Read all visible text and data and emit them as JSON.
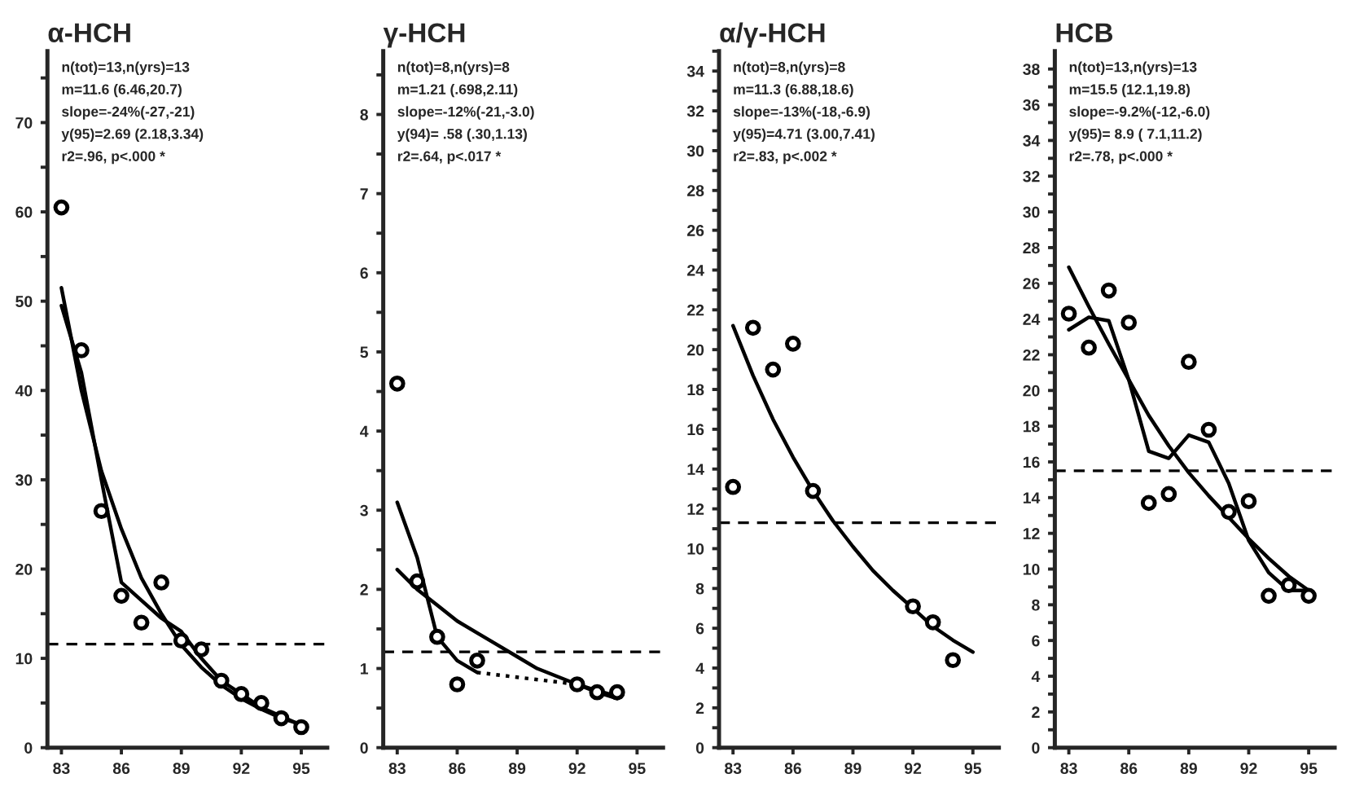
{
  "chart_data": [
    {
      "type": "scatter",
      "title": "α-HCH",
      "annotations": [
        "n(tot)=13,n(yrs)=13",
        "m=11.6 (6.46,20.7)",
        "slope=-24%(-27,-21)",
        "y(95)=2.69 (2.18,3.34)",
        "r2=.96, p<.000 *"
      ],
      "xlim": [
        82.3,
        96.3
      ],
      "xticks": [
        83,
        86,
        89,
        92,
        95
      ],
      "ylim": [
        0,
        78
      ],
      "yticks": [
        0,
        {
          "value": 5,
          "label": null
        },
        10,
        {
          "value": 15,
          "label": null
        },
        20,
        {
          "value": 25,
          "label": null
        },
        30,
        {
          "value": 35,
          "label": null
        },
        40,
        {
          "value": 45,
          "label": null
        },
        50,
        {
          "value": 55,
          "label": null
        },
        60,
        {
          "value": 65,
          "label": null
        },
        70,
        {
          "value": 75,
          "label": null
        }
      ],
      "ref_lines": [
        {
          "axis": "y",
          "value": 11.6,
          "line_style": "dashed",
          "color": "#000000"
        }
      ],
      "series": [
        {
          "marker": "circle",
          "color": "#000000",
          "x": [
            83,
            84,
            85,
            86,
            87,
            88,
            89,
            90,
            91,
            92,
            93,
            94,
            95
          ],
          "values": [
            60.5,
            44.5,
            26.5,
            17,
            14,
            18.5,
            12,
            11,
            7.5,
            6,
            5,
            3.3,
            2.3
          ]
        },
        {
          "type": "line",
          "line_style": "solid",
          "color": "#000000",
          "x": [
            83,
            84,
            85,
            86,
            87,
            88,
            89,
            90,
            91,
            92,
            93,
            94,
            95
          ],
          "values": [
            51.5,
            40,
            31,
            24.5,
            19,
            15,
            11.5,
            9,
            7,
            5.5,
            4.3,
            3.3,
            2.6
          ]
        },
        {
          "type": "line",
          "line_style": "solid",
          "color": "#000000",
          "x": [
            83,
            84,
            85,
            86,
            87,
            88,
            89,
            90,
            91,
            92,
            93,
            94,
            95
          ],
          "values": [
            49.5,
            42,
            30,
            18.5,
            16.5,
            14.5,
            13,
            10,
            7.5,
            6,
            4.5,
            3.5,
            2.5
          ]
        }
      ]
    },
    {
      "type": "scatter",
      "title": "γ-HCH",
      "annotations": [
        "n(tot)=8,n(yrs)=8",
        "m=1.21 (.698,2.11)",
        "slope=-12%(-21,-3.0)",
        "y(94)= .58 (.30,1.13)",
        "r2=.64, p<.017 *"
      ],
      "xlim": [
        82.3,
        96.3
      ],
      "xticks": [
        83,
        86,
        89,
        92,
        95
      ],
      "ylim": [
        0,
        8.8
      ],
      "yticks": [
        0,
        {
          "value": 0.5,
          "label": null
        },
        1,
        {
          "value": 1.5,
          "label": null
        },
        2,
        {
          "value": 2.5,
          "label": null
        },
        3,
        {
          "value": 3.5,
          "label": null
        },
        4,
        {
          "value": 4.5,
          "label": null
        },
        5,
        {
          "value": 5.5,
          "label": null
        },
        6,
        {
          "value": 6.5,
          "label": null
        },
        7,
        {
          "value": 7.5,
          "label": null
        },
        8,
        {
          "value": 8.5,
          "label": null
        }
      ],
      "ref_lines": [
        {
          "axis": "y",
          "value": 1.21,
          "line_style": "dashed",
          "color": "#000000"
        }
      ],
      "series": [
        {
          "marker": "circle",
          "color": "#000000",
          "x": [
            83,
            84,
            85,
            86,
            87,
            92,
            93,
            94
          ],
          "values": [
            4.6,
            2.1,
            1.4,
            0.8,
            1.1,
            0.8,
            0.7,
            0.7
          ]
        },
        {
          "type": "line",
          "line_style": "solid",
          "color": "#000000",
          "x": [
            83,
            84,
            85,
            86,
            87,
            88,
            89,
            90,
            91,
            92,
            93,
            94
          ],
          "values": [
            2.25,
            2.0,
            1.8,
            1.6,
            1.45,
            1.3,
            1.15,
            1.0,
            0.9,
            0.8,
            0.7,
            0.62
          ]
        },
        {
          "type": "line",
          "line_style": "solid",
          "color": "#000000",
          "x": [
            83,
            84,
            85,
            86,
            87
          ],
          "values": [
            3.1,
            2.4,
            1.4,
            1.1,
            0.95
          ]
        },
        {
          "type": "line",
          "line_style": "dotted",
          "color": "#000000",
          "x": [
            87,
            92
          ],
          "values": [
            0.95,
            0.8
          ]
        },
        {
          "type": "line",
          "line_style": "solid",
          "color": "#000000",
          "x": [
            92,
            93,
            94
          ],
          "values": [
            0.8,
            0.72,
            0.65
          ]
        }
      ]
    },
    {
      "type": "scatter",
      "title": "α/γ-HCH",
      "annotations": [
        "n(tot)=8,n(yrs)=8",
        "m=11.3 (6.88,18.6)",
        "slope=-13%(-18,-6.9)",
        "y(95)=4.71 (3.00,7.41)",
        "r2=.83, p<.002 *"
      ],
      "xlim": [
        82.3,
        96.3
      ],
      "xticks": [
        83,
        86,
        89,
        92,
        95
      ],
      "ylim": [
        0,
        35
      ],
      "yticks": [
        0,
        {
          "value": 1,
          "label": null
        },
        2,
        {
          "value": 3,
          "label": null
        },
        4,
        {
          "value": 5,
          "label": null
        },
        6,
        {
          "value": 7,
          "label": null
        },
        8,
        {
          "value": 9,
          "label": null
        },
        10,
        {
          "value": 11,
          "label": null
        },
        12,
        {
          "value": 13,
          "label": null
        },
        14,
        {
          "value": 15,
          "label": null
        },
        16,
        {
          "value": 17,
          "label": null
        },
        18,
        {
          "value": 19,
          "label": null
        },
        20,
        {
          "value": 21,
          "label": null
        },
        22,
        {
          "value": 23,
          "label": null
        },
        24,
        {
          "value": 25,
          "label": null
        },
        26,
        {
          "value": 27,
          "label": null
        },
        28,
        {
          "value": 29,
          "label": null
        },
        30,
        {
          "value": 31,
          "label": null
        },
        32,
        {
          "value": 33,
          "label": null
        },
        34,
        {
          "value": 35,
          "label": null
        }
      ],
      "ref_lines": [
        {
          "axis": "y",
          "value": 11.3,
          "line_style": "dashed",
          "color": "#000000"
        }
      ],
      "series": [
        {
          "marker": "circle",
          "color": "#000000",
          "x": [
            83,
            84,
            85,
            86,
            87,
            92,
            93,
            94
          ],
          "values": [
            13.1,
            21.1,
            19,
            20.3,
            12.9,
            7.1,
            6.3,
            4.4
          ]
        },
        {
          "type": "line",
          "line_style": "solid",
          "color": "#000000",
          "x": [
            83,
            84,
            85,
            86,
            87,
            88,
            89,
            90,
            91,
            92,
            93,
            94,
            95
          ],
          "values": [
            21.2,
            18.7,
            16.5,
            14.6,
            12.9,
            11.4,
            10.1,
            8.9,
            7.9,
            7.0,
            6.1,
            5.4,
            4.8
          ]
        }
      ]
    },
    {
      "type": "scatter",
      "title": "HCB",
      "annotations": [
        "n(tot)=13,n(yrs)=13",
        "m=15.5 (12.1,19.8)",
        "slope=-9.2%(-12,-6.0)",
        "y(95)= 8.9 ( 7.1,11.2)",
        "r2=.78, p<.000 *"
      ],
      "xlim": [
        82.3,
        96.3
      ],
      "xticks": [
        83,
        86,
        89,
        92,
        95
      ],
      "ylim": [
        0,
        39
      ],
      "yticks": [
        0,
        {
          "value": 1,
          "label": null
        },
        2,
        {
          "value": 3,
          "label": null
        },
        4,
        {
          "value": 5,
          "label": null
        },
        6,
        {
          "value": 7,
          "label": null
        },
        8,
        {
          "value": 9,
          "label": null
        },
        10,
        {
          "value": 11,
          "label": null
        },
        12,
        {
          "value": 13,
          "label": null
        },
        14,
        {
          "value": 15,
          "label": null
        },
        16,
        {
          "value": 17,
          "label": null
        },
        18,
        {
          "value": 19,
          "label": null
        },
        20,
        {
          "value": 21,
          "label": null
        },
        22,
        {
          "value": 23,
          "label": null
        },
        24,
        {
          "value": 25,
          "label": null
        },
        26,
        {
          "value": 27,
          "label": null
        },
        28,
        {
          "value": 29,
          "label": null
        },
        30,
        {
          "value": 31,
          "label": null
        },
        32,
        {
          "value": 33,
          "label": null
        },
        34,
        {
          "value": 35,
          "label": null
        },
        36,
        {
          "value": 37,
          "label": null
        },
        38
      ],
      "ref_lines": [
        {
          "axis": "y",
          "value": 15.5,
          "line_style": "dashed",
          "color": "#000000"
        }
      ],
      "series": [
        {
          "marker": "circle",
          "color": "#000000",
          "x": [
            83,
            84,
            85,
            86,
            87,
            88,
            89,
            90,
            91,
            92,
            93,
            94,
            95
          ],
          "values": [
            24.3,
            22.4,
            25.6,
            23.8,
            13.7,
            14.2,
            21.6,
            17.8,
            13.2,
            13.8,
            8.5,
            9.1,
            8.5
          ]
        },
        {
          "type": "line",
          "line_style": "solid",
          "color": "#000000",
          "x": [
            83,
            84,
            85,
            86,
            87,
            88,
            89,
            90,
            91,
            92,
            93,
            94,
            95
          ],
          "values": [
            26.9,
            24.7,
            22.6,
            20.6,
            18.6,
            16.9,
            15.4,
            14.1,
            12.9,
            11.7,
            10.6,
            9.6,
            8.8
          ]
        },
        {
          "type": "line",
          "line_style": "solid",
          "color": "#000000",
          "x": [
            83,
            84,
            85,
            86,
            87,
            88,
            89,
            90,
            91,
            92,
            93,
            94,
            95
          ],
          "values": [
            23.4,
            24.1,
            23.9,
            20.6,
            16.6,
            16.2,
            17.5,
            17.1,
            14.8,
            11.6,
            9.8,
            8.8,
            8.8
          ]
        }
      ]
    }
  ]
}
